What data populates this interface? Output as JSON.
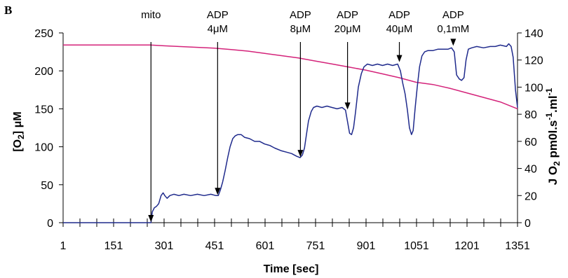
{
  "panel_label": "B",
  "chart_data": {
    "type": "line",
    "title": "",
    "xlabel": "Time [sec]",
    "ylabel_left": {
      "main": "[O",
      "sub": "2",
      "tail": "] μM"
    },
    "ylabel_right": {
      "a": "J O",
      "b": "2",
      "c": " pm0l.s",
      "d": "-1",
      "e": ".ml",
      "f": "-1"
    },
    "xlim": [
      1,
      1351
    ],
    "ylim_left": [
      0,
      250
    ],
    "ylim_right": [
      0,
      140
    ],
    "x_ticks": [
      1,
      151,
      301,
      451,
      601,
      751,
      901,
      1051,
      1201,
      1351
    ],
    "x_minor_step": 50,
    "y_ticks_left": [
      0,
      50,
      100,
      150,
      200,
      250
    ],
    "y_ticks_right": [
      0,
      20,
      40,
      60,
      80,
      100,
      120,
      140
    ],
    "grid": false,
    "colors": {
      "oxygen": "#d4237a",
      "flux": "#1f2a8c"
    },
    "series": [
      {
        "axis": "left",
        "color": "#d4237a",
        "points": [
          [
            1,
            234
          ],
          [
            260,
            234
          ],
          [
            300,
            233
          ],
          [
            350,
            232
          ],
          [
            400,
            231
          ],
          [
            450,
            230
          ],
          [
            500,
            228
          ],
          [
            550,
            226
          ],
          [
            600,
            223
          ],
          [
            650,
            220
          ],
          [
            700,
            217
          ],
          [
            750,
            213
          ],
          [
            800,
            209
          ],
          [
            850,
            205
          ],
          [
            900,
            201
          ],
          [
            950,
            196
          ],
          [
            1000,
            191
          ],
          [
            1050,
            185
          ],
          [
            1100,
            182
          ],
          [
            1150,
            177
          ],
          [
            1200,
            171
          ],
          [
            1250,
            165
          ],
          [
            1300,
            159
          ],
          [
            1351,
            150
          ]
        ]
      },
      {
        "axis": "right",
        "color": "#1f2a8c",
        "points": [
          [
            1,
            0
          ],
          [
            262,
            0
          ],
          [
            266,
            8
          ],
          [
            272,
            11
          ],
          [
            278,
            12
          ],
          [
            285,
            14
          ],
          [
            292,
            20
          ],
          [
            298,
            22
          ],
          [
            303,
            20
          ],
          [
            310,
            18
          ],
          [
            318,
            20
          ],
          [
            330,
            21
          ],
          [
            345,
            20
          ],
          [
            360,
            21
          ],
          [
            380,
            20
          ],
          [
            400,
            21
          ],
          [
            420,
            20
          ],
          [
            440,
            21
          ],
          [
            455,
            20
          ],
          [
            462,
            20
          ],
          [
            468,
            24
          ],
          [
            475,
            30
          ],
          [
            482,
            38
          ],
          [
            490,
            48
          ],
          [
            497,
            56
          ],
          [
            505,
            62
          ],
          [
            512,
            64
          ],
          [
            520,
            65
          ],
          [
            530,
            65
          ],
          [
            540,
            63
          ],
          [
            555,
            62
          ],
          [
            570,
            60
          ],
          [
            585,
            60
          ],
          [
            600,
            58
          ],
          [
            615,
            57
          ],
          [
            630,
            55
          ],
          [
            650,
            53
          ],
          [
            665,
            52
          ],
          [
            680,
            51
          ],
          [
            695,
            49
          ],
          [
            705,
            48
          ],
          [
            712,
            50
          ],
          [
            718,
            55
          ],
          [
            724,
            65
          ],
          [
            730,
            75
          ],
          [
            738,
            82
          ],
          [
            745,
            85
          ],
          [
            755,
            86
          ],
          [
            770,
            85
          ],
          [
            785,
            86
          ],
          [
            800,
            85
          ],
          [
            815,
            84
          ],
          [
            830,
            85
          ],
          [
            840,
            83
          ],
          [
            845,
            76
          ],
          [
            852,
            66
          ],
          [
            858,
            65
          ],
          [
            864,
            70
          ],
          [
            870,
            82
          ],
          [
            878,
            100
          ],
          [
            887,
            110
          ],
          [
            895,
            115
          ],
          [
            905,
            117
          ],
          [
            920,
            116
          ],
          [
            935,
            117
          ],
          [
            950,
            116
          ],
          [
            965,
            117
          ],
          [
            980,
            116
          ],
          [
            995,
            117
          ],
          [
            1003,
            112
          ],
          [
            1010,
            103
          ],
          [
            1017,
            95
          ],
          [
            1024,
            83
          ],
          [
            1030,
            70
          ],
          [
            1036,
            65
          ],
          [
            1041,
            68
          ],
          [
            1047,
            85
          ],
          [
            1053,
            100
          ],
          [
            1060,
            115
          ],
          [
            1067,
            123
          ],
          [
            1075,
            126
          ],
          [
            1085,
            127
          ],
          [
            1100,
            127
          ],
          [
            1115,
            128
          ],
          [
            1130,
            128
          ],
          [
            1145,
            128
          ],
          [
            1155,
            129
          ],
          [
            1163,
            126
          ],
          [
            1170,
            109
          ],
          [
            1178,
            106
          ],
          [
            1185,
            105
          ],
          [
            1192,
            107
          ],
          [
            1198,
            120
          ],
          [
            1205,
            128
          ],
          [
            1215,
            129
          ],
          [
            1230,
            130
          ],
          [
            1250,
            129
          ],
          [
            1270,
            130
          ],
          [
            1285,
            130
          ],
          [
            1300,
            131
          ],
          [
            1318,
            130
          ],
          [
            1325,
            132
          ],
          [
            1332,
            130
          ],
          [
            1338,
            122
          ],
          [
            1345,
            98
          ],
          [
            1351,
            85
          ]
        ]
      }
    ],
    "annotations": [
      {
        "lines": [
          "mito"
        ],
        "x": 262,
        "value": 0
      },
      {
        "lines": [
          "ADP",
          "4μM"
        ],
        "x": 460,
        "value": 20
      },
      {
        "lines": [
          "ADP",
          "8μM"
        ],
        "x": 706,
        "value": 48
      },
      {
        "lines": [
          "ADP",
          "20μM"
        ],
        "x": 846,
        "value": 83
      },
      {
        "lines": [
          "ADP",
          "40μM"
        ],
        "x": 1000,
        "value": 118
      },
      {
        "lines": [
          "ADP",
          "0,1mM"
        ],
        "x": 1160,
        "value": 130
      }
    ]
  }
}
